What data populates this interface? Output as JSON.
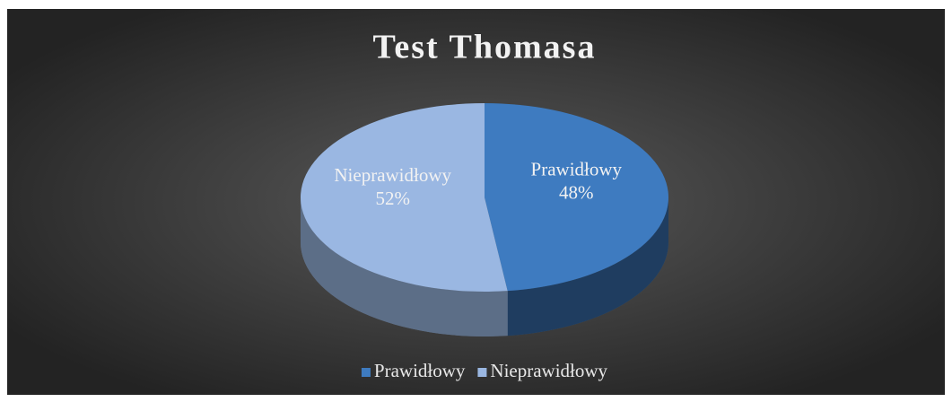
{
  "chart_data": {
    "type": "pie",
    "title": "Test Thomasa",
    "categories": [
      "Prawidłowy",
      "Nieprawidłowy"
    ],
    "values": [
      48,
      52
    ],
    "value_labels": [
      "48%",
      "52%"
    ],
    "colors": [
      "#3e7bc0",
      "#9ab7e2"
    ],
    "legend": "bottom"
  }
}
